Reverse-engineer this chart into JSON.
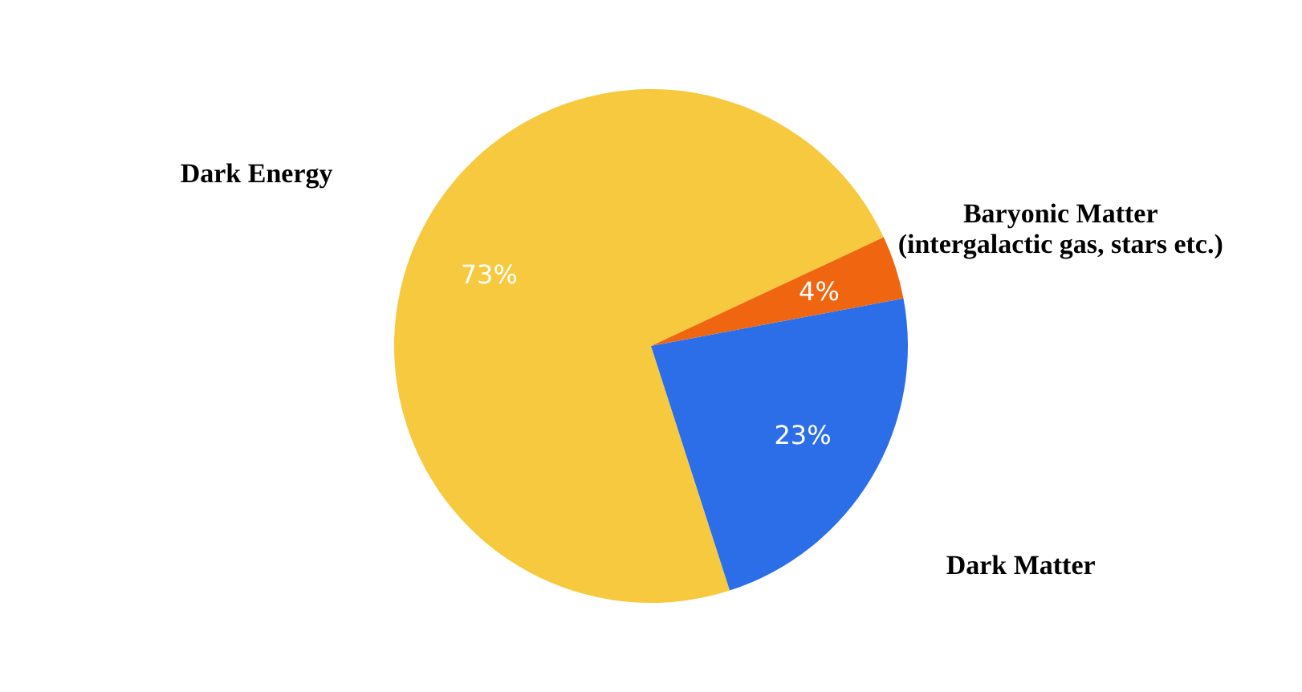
{
  "chart_data": {
    "type": "pie",
    "categories": [
      "Dark Energy",
      "Baryonic Matter\n(intergalactic gas, stars etc.)",
      "Dark Matter"
    ],
    "values": [
      73,
      4,
      23
    ],
    "colors": [
      "#f7c93e",
      "#f0650f",
      "#2c6ee8"
    ],
    "value_labels": [
      "73%",
      "4%",
      "23%"
    ]
  }
}
